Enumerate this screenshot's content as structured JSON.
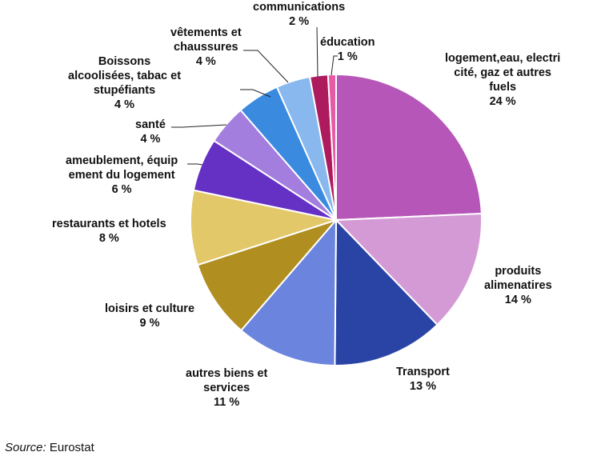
{
  "chart_data": {
    "type": "pie",
    "title": "",
    "source_label": "Source:",
    "source_value": "Eurostat",
    "start_angle_deg": 0,
    "direction": "clockwise",
    "unit": "%",
    "slices": [
      {
        "label": "logement,eau, electricité, gaz et autres fuels",
        "value": 24,
        "color": "#B656B8",
        "end_angle": 87.5
      },
      {
        "label": "produits alimenatires",
        "value": 14,
        "color": "#D49AD6",
        "end_angle": 136
      },
      {
        "label": "Transport",
        "value": 13,
        "color": "#2A44A6",
        "end_angle": 180.5
      },
      {
        "label": "autres biens et services",
        "value": 11,
        "color": "#6B85DE",
        "end_angle": 220.7
      },
      {
        "label": "loisirs et culture",
        "value": 9,
        "color": "#B08E20",
        "end_angle": 252
      },
      {
        "label": "restaurants et hotels",
        "value": 8,
        "color": "#E3C86A",
        "end_angle": 281.8
      },
      {
        "label": "ameublement, équipement du logement",
        "value": 6,
        "color": "#6530C4",
        "end_angle": 303
      },
      {
        "label": "santé",
        "value": 4,
        "color": "#A37EDE",
        "end_angle": 319
      },
      {
        "label": "Boissons alcoolisées, tabac et stupéfiants",
        "value": 4,
        "color": "#3A8AE0",
        "end_angle": 336
      },
      {
        "label": "vêtements et chaussures",
        "value": 4,
        "color": "#88B8EE",
        "end_angle": 349.6
      },
      {
        "label": "communications",
        "value": 2,
        "color": "#AE1A5E",
        "end_angle": 356.8
      },
      {
        "label": "éducation",
        "value": 1,
        "color": "#E65BA5",
        "end_angle": 360
      }
    ]
  },
  "labels": {
    "logement": {
      "lines": [
        "logement,eau, electri",
        "cité, gaz et autres",
        "fuels"
      ],
      "pct": "24 %"
    },
    "produits": {
      "lines": [
        "produits",
        "alimenatires"
      ],
      "pct": "14 %"
    },
    "transport": {
      "lines": [
        "Transport"
      ],
      "pct": "13 %"
    },
    "autres": {
      "lines": [
        "autres biens et",
        "services"
      ],
      "pct": "11 %"
    },
    "loisirs": {
      "lines": [
        "loisirs et culture"
      ],
      "pct": "9 %"
    },
    "restaurants": {
      "lines": [
        "restaurants et hotels"
      ],
      "pct": "8 %"
    },
    "ameublement": {
      "lines": [
        "ameublement, équip",
        "ement du logement"
      ],
      "pct": "6 %"
    },
    "sante": {
      "lines": [
        "santé"
      ],
      "pct": "4 %"
    },
    "boissons": {
      "lines": [
        "Boissons",
        "alcoolisées, tabac et",
        "stupéfiants"
      ],
      "pct": "4 %"
    },
    "vetements": {
      "lines": [
        "vêtements et",
        "chaussures"
      ],
      "pct": "4 %"
    },
    "communications": {
      "lines": [
        "communications"
      ],
      "pct": "2 %"
    },
    "education": {
      "lines": [
        "éducation"
      ],
      "pct": "1 %"
    }
  },
  "footer": {
    "source_label": "Source:",
    "source_value": " Eurostat"
  }
}
